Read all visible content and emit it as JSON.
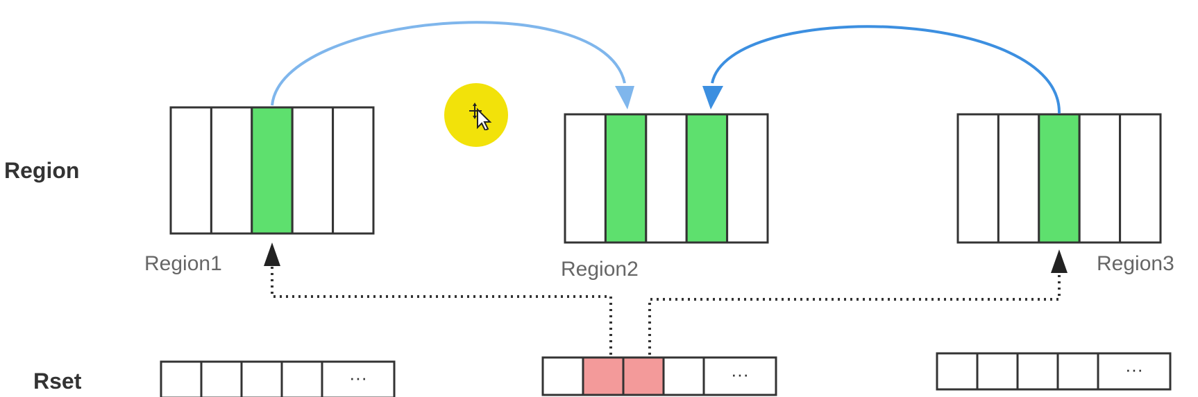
{
  "labels": {
    "region_row": "Region",
    "rset_row": "Rset"
  },
  "regions": [
    {
      "name": "Region1",
      "cells": 5,
      "highlighted": [
        2
      ]
    },
    {
      "name": "Region2",
      "cells": 5,
      "highlighted": [
        1,
        3
      ]
    },
    {
      "name": "Region3",
      "cells": 5,
      "highlighted": [
        2
      ]
    }
  ],
  "rsets": [
    {
      "cells": 4,
      "highlighted": [],
      "more": "···"
    },
    {
      "cells": 4,
      "highlighted": [
        1,
        2
      ],
      "more": "···"
    },
    {
      "cells": 4,
      "highlighted": [],
      "more": "···"
    }
  ],
  "colors": {
    "green": "#5ee06e",
    "pink": "#f39a9a",
    "arrow_light": "#7fb6ec",
    "arrow_dark": "#3c8fe0",
    "dotted": "#333333",
    "cursor_halo": "#f2e20a"
  },
  "icons": {
    "cursor": "move-cursor-icon"
  }
}
